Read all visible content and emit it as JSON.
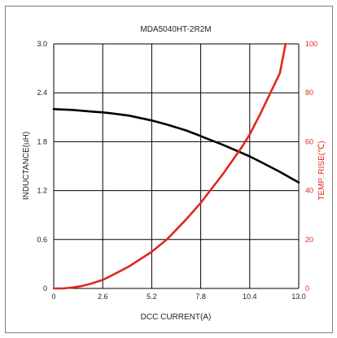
{
  "chart_data": {
    "type": "line",
    "title": "MDA5040HT-2R2M",
    "xlabel": "DCC CURRENT(A)",
    "ylabel": "INDUCTANCE(uH)",
    "ylabel_right": "TEMP. RISE(℃)",
    "xlim": [
      0,
      13.0
    ],
    "ylim": [
      0,
      3.0
    ],
    "ylim_right": [
      0,
      100
    ],
    "x_ticks": [
      "0",
      "2.6",
      "5.2",
      "7.8",
      "10.4",
      "13.0"
    ],
    "y_ticks": [
      "0",
      "0.6",
      "1.2",
      "1.8",
      "2.4",
      "3.0"
    ],
    "y_ticks_right": [
      "0",
      "20",
      "40",
      "60",
      "80",
      "100"
    ],
    "grid": true,
    "colors": {
      "inductance": "#000000",
      "temp_rise": "#e0281e",
      "grid": "#000000"
    },
    "series": [
      {
        "axis": "left",
        "x": [
          0,
          1,
          2,
          2.6,
          3,
          4,
          5,
          5.2,
          6,
          7,
          7.8,
          8,
          9,
          10,
          10.4,
          11,
          12,
          13.0
        ],
        "values": [
          2.2,
          2.19,
          2.17,
          2.16,
          2.15,
          2.12,
          2.07,
          2.06,
          2.01,
          1.94,
          1.87,
          1.85,
          1.76,
          1.66,
          1.62,
          1.55,
          1.43,
          1.3
        ]
      },
      {
        "axis": "right",
        "x": [
          0,
          0.5,
          1,
          1.5,
          2,
          2.6,
          3,
          4,
          5,
          5.2,
          6,
          7,
          7.8,
          8,
          9,
          10,
          10.4,
          11,
          12,
          12.3
        ],
        "values": [
          0,
          0,
          0.4,
          1,
          2,
          3.5,
          5,
          9,
          14,
          15,
          20,
          28,
          35,
          37,
          47,
          58,
          63,
          72,
          88,
          100
        ]
      }
    ]
  }
}
